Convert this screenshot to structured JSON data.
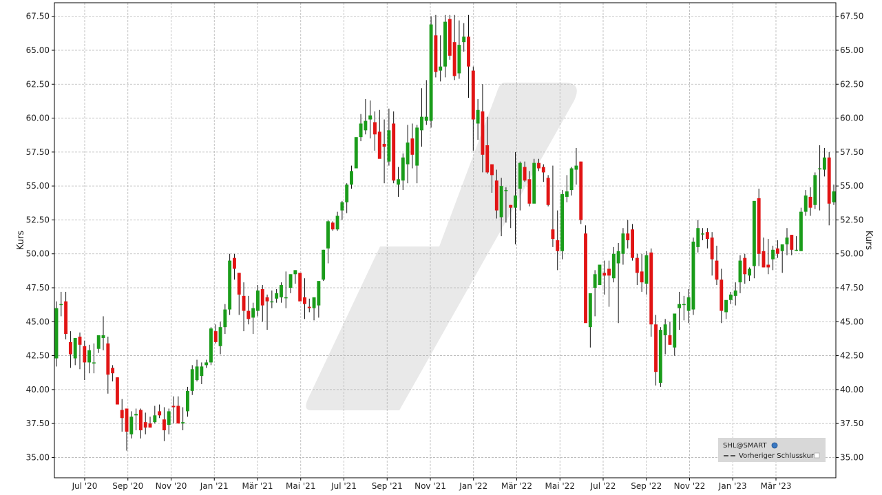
{
  "chart_data": {
    "type": "candlestick",
    "title": "",
    "ylabel_left": "Kurs",
    "ylabel_right": "Kurs",
    "ylim": [
      33.5,
      68.5
    ],
    "y_ticks": [
      35.0,
      37.5,
      40.0,
      42.5,
      45.0,
      47.5,
      50.0,
      52.5,
      55.0,
      57.5,
      60.0,
      62.5,
      65.0,
      67.5
    ],
    "y_tick_labels": [
      "35.00",
      "37.50",
      "40.00",
      "42.50",
      "45.00",
      "47.50",
      "50.00",
      "52.50",
      "55.00",
      "57.50",
      "60.00",
      "62.50",
      "65.00",
      "67.50"
    ],
    "x_tick_labels": [
      "Jul '20",
      "Sep '20",
      "Nov '20",
      "Jan '21",
      "Mär '21",
      "Mai '21",
      "Jul '21",
      "Sep '21",
      "Nov '21",
      "Jan '22",
      "Mär '22",
      "Mai '22",
      "Jul '22",
      "Sep '22",
      "Nov '22",
      "Jan '23",
      "Mär '23"
    ],
    "grid": true,
    "legend": {
      "placement": "bottom-right",
      "symbol": "SHL@SMART",
      "entries": [
        "Vorheriger Schlusskurs"
      ]
    },
    "colors": {
      "up": "#1a9c1a",
      "down": "#e11414",
      "grid": "#b4b4b4",
      "watermark": "#e9e9e9"
    },
    "series": [
      {
        "values": [
          [
            42.3,
            46.5,
            41.7,
            46.0
          ],
          [
            46.3,
            47.2,
            45.4,
            46.3
          ],
          [
            46.5,
            47.2,
            43.7,
            44.1
          ],
          [
            43.5,
            44.3,
            41.6,
            42.6
          ],
          [
            42.3,
            43.8,
            41.8,
            43.8
          ],
          [
            43.9,
            44.2,
            41.5,
            43.3
          ],
          [
            43.2,
            43.6,
            40.7,
            42.0
          ],
          [
            42.0,
            43.3,
            41.2,
            42.9
          ],
          [
            42.0,
            43.4,
            41.2,
            42.0
          ],
          [
            43.0,
            44.0,
            42.7,
            44.0
          ],
          [
            43.8,
            45.4,
            42.9,
            44.0
          ],
          [
            43.4,
            43.9,
            39.7,
            41.1
          ],
          [
            41.6,
            41.8,
            40.6,
            41.2
          ],
          [
            40.9,
            40.9,
            39.7,
            38.9
          ],
          [
            38.5,
            39.3,
            36.9,
            37.9
          ],
          [
            38.6,
            38.6,
            35.5,
            36.9
          ],
          [
            36.7,
            38.4,
            36.4,
            38.0
          ],
          [
            38.1,
            38.6,
            37.0,
            38.2
          ],
          [
            38.5,
            38.6,
            36.4,
            37.0
          ],
          [
            37.6,
            38.3,
            36.7,
            37.2
          ],
          [
            37.5,
            38.0,
            37.2,
            37.2
          ],
          [
            37.6,
            38.8,
            37.5,
            38.1
          ],
          [
            38.4,
            38.9,
            37.9,
            38.1
          ],
          [
            37.8,
            38.7,
            36.2,
            37.0
          ],
          [
            37.4,
            38.6,
            36.7,
            38.4
          ],
          [
            38.8,
            39.5,
            37.5,
            38.7
          ],
          [
            38.8,
            39.5,
            37.5,
            37.5
          ],
          [
            37.5,
            38.7,
            37.0,
            37.6
          ],
          [
            38.4,
            40.2,
            38.0,
            39.9
          ],
          [
            39.9,
            41.8,
            39.6,
            41.5
          ],
          [
            40.7,
            42.2,
            40.6,
            41.7
          ],
          [
            41.0,
            42.0,
            40.4,
            41.7
          ],
          [
            41.8,
            42.2,
            41.6,
            42.0
          ],
          [
            42.0,
            44.6,
            41.8,
            44.5
          ],
          [
            44.3,
            44.8,
            43.4,
            43.5
          ],
          [
            43.2,
            45.0,
            42.6,
            44.6
          ],
          [
            44.6,
            46.3,
            44.1,
            45.9
          ],
          [
            45.9,
            50.0,
            45.5,
            49.5
          ],
          [
            49.7,
            50.0,
            48.1,
            48.9
          ],
          [
            48.6,
            48.6,
            45.5,
            47.0
          ],
          [
            46.9,
            47.9,
            44.3,
            45.8
          ],
          [
            45.8,
            46.9,
            44.8,
            45.2
          ],
          [
            45.3,
            46.4,
            44.1,
            46.0
          ],
          [
            45.8,
            47.7,
            45.4,
            47.3
          ],
          [
            47.4,
            47.7,
            45.0,
            46.2
          ],
          [
            46.8,
            47.0,
            44.4,
            46.5
          ],
          [
            46.5,
            47.3,
            46.0,
            46.5
          ],
          [
            46.7,
            47.4,
            46.4,
            47.1
          ],
          [
            46.8,
            47.9,
            46.4,
            47.7
          ],
          [
            46.8,
            48.7,
            46.0,
            46.8
          ],
          [
            47.5,
            48.5,
            47.1,
            48.5
          ],
          [
            48.5,
            48.8,
            47.8,
            48.8
          ],
          [
            48.6,
            48.6,
            46.5,
            46.5
          ],
          [
            46.8,
            48.2,
            45.2,
            46.3
          ],
          [
            46.1,
            46.7,
            45.7,
            46.0
          ],
          [
            46.0,
            46.3,
            45.1,
            46.8
          ],
          [
            46.2,
            47.9,
            45.3,
            48.0
          ],
          [
            48.1,
            50.3,
            48.0,
            50.3
          ],
          [
            50.4,
            52.5,
            49.3,
            52.4
          ],
          [
            52.3,
            52.4,
            51.7,
            51.8
          ],
          [
            51.8,
            53.1,
            51.7,
            52.8
          ],
          [
            53.2,
            53.9,
            52.5,
            53.8
          ],
          [
            53.8,
            55.2,
            53.0,
            55.1
          ],
          [
            55.1,
            56.5,
            54.8,
            56.1
          ],
          [
            56.3,
            58.5,
            56.4,
            58.6
          ],
          [
            58.6,
            60.3,
            58.3,
            59.6
          ],
          [
            59.1,
            61.4,
            58.8,
            59.8
          ],
          [
            59.9,
            61.3,
            58.5,
            60.2
          ],
          [
            59.7,
            60.5,
            57.6,
            58.8
          ],
          [
            59.0,
            60.6,
            58.2,
            57.0
          ],
          [
            58.1,
            59.9,
            55.2,
            57.9
          ],
          [
            56.8,
            60.7,
            56.5,
            59.1
          ],
          [
            59.6,
            60.5,
            55.2,
            55.4
          ],
          [
            55.1,
            56.4,
            54.2,
            55.5
          ],
          [
            55.4,
            57.4,
            54.7,
            57.1
          ],
          [
            56.6,
            59.5,
            55.2,
            58.2
          ],
          [
            58.5,
            59.6,
            56.3,
            57.3
          ],
          [
            56.5,
            59.5,
            55.2,
            59.3
          ],
          [
            59.1,
            62.2,
            57.9,
            60.1
          ],
          [
            59.8,
            62.8,
            59.5,
            60.1
          ],
          [
            59.8,
            67.5,
            59.3,
            66.9
          ],
          [
            66.1,
            67.6,
            63.0,
            63.4
          ],
          [
            63.5,
            66.1,
            62.7,
            63.8
          ],
          [
            63.8,
            67.6,
            63.0,
            67.1
          ],
          [
            67.3,
            67.6,
            64.3,
            64.6
          ],
          [
            65.6,
            67.6,
            62.8,
            63.1
          ],
          [
            63.3,
            67.2,
            62.9,
            65.4
          ],
          [
            65.6,
            67.0,
            64.9,
            66.0
          ],
          [
            66.0,
            67.6,
            61.5,
            63.8
          ],
          [
            63.5,
            63.8,
            57.6,
            59.9
          ],
          [
            59.6,
            61.4,
            58.4,
            60.6
          ],
          [
            60.5,
            62.5,
            56.0,
            57.3
          ],
          [
            58.0,
            60.1,
            55.9,
            56.0
          ],
          [
            56.6,
            56.6,
            54.5,
            55.8
          ],
          [
            55.4,
            56.2,
            52.6,
            53.2
          ],
          [
            52.7,
            55.6,
            51.3,
            55.0
          ],
          [
            54.7,
            54.9,
            52.3,
            54.7
          ],
          [
            53.6,
            53.6,
            51.9,
            53.4
          ],
          [
            53.4,
            57.5,
            50.7,
            54.3
          ],
          [
            54.8,
            56.8,
            53.2,
            56.7
          ],
          [
            56.4,
            56.8,
            55.3,
            55.4
          ],
          [
            55.5,
            56.1,
            53.5,
            53.7
          ],
          [
            53.7,
            57.0,
            54.0,
            56.7
          ],
          [
            56.7,
            57.0,
            56.1,
            56.3
          ],
          [
            56.4,
            56.6,
            55.3,
            56.0
          ],
          [
            55.6,
            55.8,
            53.5,
            53.6
          ],
          [
            51.8,
            56.5,
            50.5,
            51.1
          ],
          [
            51.0,
            53.2,
            48.8,
            50.2
          ],
          [
            50.2,
            54.7,
            49.6,
            54.4
          ],
          [
            54.2,
            55.8,
            53.8,
            54.6
          ],
          [
            54.7,
            56.4,
            54.3,
            56.3
          ],
          [
            56.2,
            57.8,
            55.1,
            56.5
          ],
          [
            56.8,
            56.8,
            52.2,
            52.5
          ],
          [
            51.5,
            52.1,
            48.1,
            44.9
          ],
          [
            44.6,
            46.5,
            43.1,
            47.1
          ],
          [
            47.5,
            48.8,
            45.4,
            48.5
          ],
          [
            47.7,
            49.2,
            47.7,
            49.2
          ],
          [
            48.6,
            49.5,
            47.0,
            48.4
          ],
          [
            48.9,
            49.5,
            46.1,
            48.4
          ],
          [
            48.2,
            50.5,
            47.9,
            50.0
          ],
          [
            49.3,
            50.8,
            44.9,
            50.2
          ],
          [
            50.0,
            51.9,
            49.2,
            51.5
          ],
          [
            51.5,
            52.5,
            50.4,
            51.0
          ],
          [
            51.8,
            52.2,
            49.5,
            49.7
          ],
          [
            49.7,
            50.0,
            47.7,
            48.6
          ],
          [
            48.7,
            50.0,
            47.2,
            47.9
          ],
          [
            47.8,
            50.2,
            47.0,
            49.9
          ],
          [
            50.1,
            50.4,
            43.9,
            44.8
          ],
          [
            44.8,
            45.5,
            40.3,
            41.3
          ],
          [
            40.5,
            44.6,
            40.2,
            44.4
          ],
          [
            44.0,
            45.2,
            42.6,
            44.8
          ],
          [
            44.0,
            45.0,
            43.3,
            43.3
          ],
          [
            43.1,
            45.2,
            42.5,
            45.6
          ],
          [
            46.0,
            47.2,
            44.4,
            46.3
          ],
          [
            46.3,
            46.9,
            45.1,
            46.3
          ],
          [
            45.8,
            47.4,
            44.9,
            46.8
          ],
          [
            45.9,
            51.2,
            45.5,
            50.9
          ],
          [
            50.5,
            52.5,
            50.1,
            51.9
          ],
          [
            51.5,
            51.9,
            51.0,
            51.5
          ],
          [
            51.6,
            51.9,
            50.4,
            51.1
          ],
          [
            51.2,
            51.6,
            48.4,
            49.6
          ],
          [
            49.5,
            50.6,
            47.7,
            48.1
          ],
          [
            48.1,
            48.9,
            44.9,
            45.8
          ],
          [
            45.7,
            46.4,
            45.2,
            46.6
          ],
          [
            46.6,
            47.2,
            46.3,
            47.0
          ],
          [
            46.9,
            47.9,
            46.2,
            47.3
          ],
          [
            47.9,
            49.9,
            47.1,
            49.5
          ],
          [
            49.7,
            50.0,
            47.8,
            48.5
          ],
          [
            48.4,
            49.0,
            48.0,
            48.9
          ],
          [
            49.1,
            52.1,
            48.2,
            53.9
          ],
          [
            54.1,
            54.8,
            49.1,
            50.0
          ],
          [
            50.2,
            51.2,
            49.0,
            49.0
          ],
          [
            49.2,
            51.1,
            48.5,
            49.0
          ],
          [
            49.6,
            50.6,
            48.8,
            50.3
          ],
          [
            50.4,
            51.0,
            49.7,
            50.0
          ],
          [
            50.2,
            50.6,
            48.6,
            50.7
          ],
          [
            50.7,
            51.9,
            49.9,
            51.2
          ],
          [
            51.4,
            51.4,
            49.9,
            50.3
          ],
          [
            50.3,
            51.3,
            50.2,
            50.3
          ],
          [
            50.2,
            53.4,
            50.3,
            53.1
          ],
          [
            53.1,
            54.7,
            52.8,
            54.3
          ],
          [
            54.2,
            54.9,
            52.8,
            53.4
          ],
          [
            53.6,
            56.0,
            53.3,
            55.8
          ],
          [
            56.3,
            58.0,
            53.2,
            56.3
          ],
          [
            56.2,
            57.8,
            55.7,
            57.1
          ],
          [
            57.1,
            57.5,
            52.1,
            53.7
          ],
          [
            53.8,
            55.1,
            53.6,
            54.6
          ]
        ]
      }
    ]
  }
}
